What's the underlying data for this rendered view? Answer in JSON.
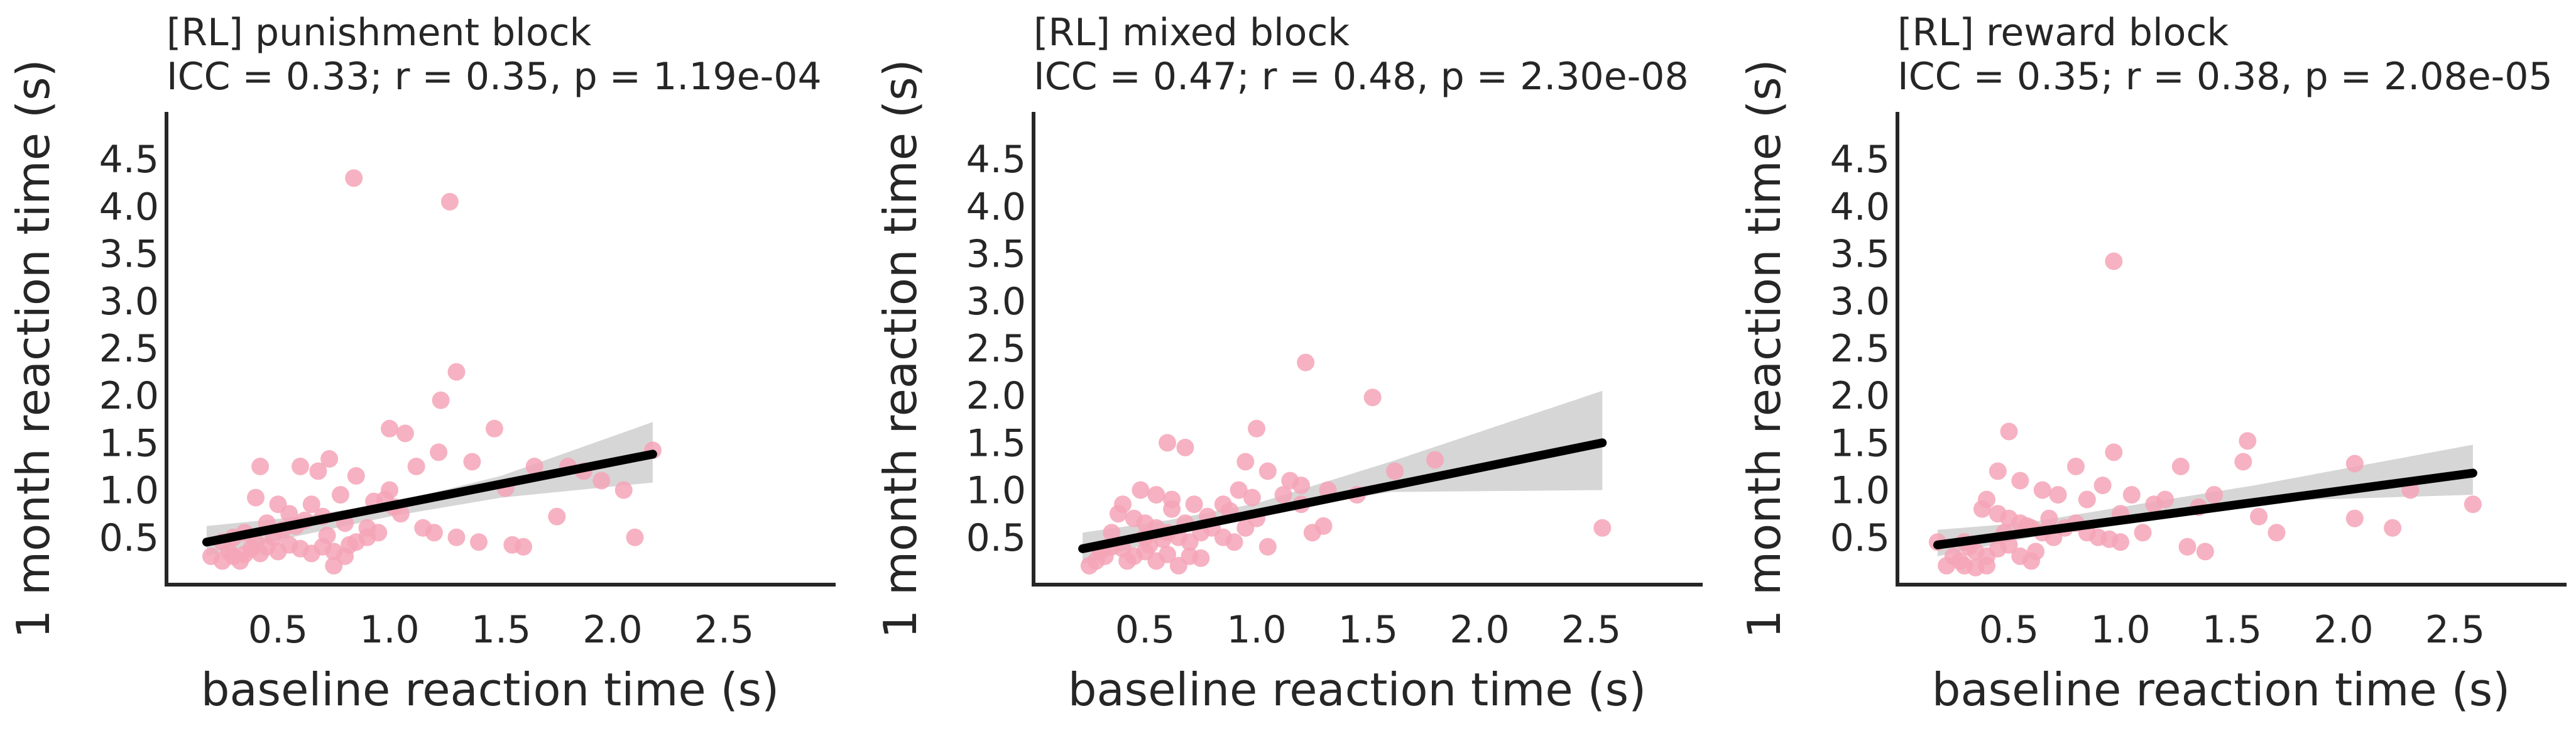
{
  "colors": {
    "point": "#f4a5b7",
    "fit_line": "#000000",
    "band": "#c8c8c8",
    "axis": "#262626"
  },
  "chart_data": [
    {
      "type": "scatter",
      "title": "[RL] punishment block",
      "subtitle": "ICC = 0.33; r = 0.35, p = 1.19e-04",
      "xlabel": "baseline reaction time (s)",
      "ylabel": "1 month reaction time (s)",
      "xlim": [
        0.0,
        3.0
      ],
      "ylim": [
        0.0,
        5.0
      ],
      "xticks": [
        "0.5",
        "1.0",
        "1.5",
        "2.0",
        "2.5"
      ],
      "yticks": [
        "0.5",
        "1.0",
        "1.5",
        "2.0",
        "2.5",
        "3.0",
        "3.5",
        "4.0",
        "4.5"
      ],
      "fit_line": {
        "x": [
          0.18,
          2.18
        ],
        "y": [
          0.45,
          1.38
        ]
      },
      "band": {
        "x": [
          0.18,
          0.6,
          1.0,
          1.5,
          2.18
        ],
        "lower": [
          0.3,
          0.52,
          0.72,
          0.92,
          1.08
        ],
        "upper": [
          0.62,
          0.72,
          0.86,
          1.15,
          1.72
        ]
      },
      "points": [
        [
          0.84,
          4.3
        ],
        [
          1.27,
          4.05
        ],
        [
          1.3,
          2.25
        ],
        [
          1.23,
          1.95
        ],
        [
          1.0,
          1.65
        ],
        [
          1.07,
          1.6
        ],
        [
          1.47,
          1.65
        ],
        [
          1.22,
          1.4
        ],
        [
          1.37,
          1.3
        ],
        [
          0.73,
          1.33
        ],
        [
          0.6,
          1.25
        ],
        [
          0.68,
          1.2
        ],
        [
          0.85,
          1.15
        ],
        [
          1.12,
          1.25
        ],
        [
          0.42,
          1.25
        ],
        [
          1.65,
          1.25
        ],
        [
          1.8,
          1.25
        ],
        [
          1.87,
          1.2
        ],
        [
          1.95,
          1.1
        ],
        [
          2.18,
          1.42
        ],
        [
          2.05,
          1.0
        ],
        [
          1.52,
          1.02
        ],
        [
          1.0,
          1.0
        ],
        [
          0.78,
          0.95
        ],
        [
          0.4,
          0.92
        ],
        [
          0.5,
          0.85
        ],
        [
          0.65,
          0.85
        ],
        [
          0.93,
          0.88
        ],
        [
          0.55,
          0.75
        ],
        [
          0.7,
          0.72
        ],
        [
          0.8,
          0.65
        ],
        [
          0.9,
          0.6
        ],
        [
          1.02,
          0.82
        ],
        [
          1.15,
          0.6
        ],
        [
          1.3,
          0.5
        ],
        [
          1.4,
          0.45
        ],
        [
          1.55,
          0.42
        ],
        [
          1.6,
          0.4
        ],
        [
          1.2,
          0.55
        ],
        [
          0.35,
          0.55
        ],
        [
          0.3,
          0.5
        ],
        [
          0.25,
          0.45
        ],
        [
          0.4,
          0.45
        ],
        [
          0.45,
          0.4
        ],
        [
          0.5,
          0.35
        ],
        [
          0.55,
          0.42
        ],
        [
          0.6,
          0.38
        ],
        [
          0.65,
          0.33
        ],
        [
          0.7,
          0.4
        ],
        [
          0.75,
          0.35
        ],
        [
          0.8,
          0.3
        ],
        [
          0.85,
          0.45
        ],
        [
          0.9,
          0.5
        ],
        [
          0.95,
          0.55
        ],
        [
          0.35,
          0.32
        ],
        [
          0.3,
          0.3
        ],
        [
          0.2,
          0.3
        ],
        [
          0.25,
          0.25
        ],
        [
          0.28,
          0.35
        ],
        [
          0.38,
          0.38
        ],
        [
          0.42,
          0.33
        ],
        [
          0.48,
          0.5
        ],
        [
          0.52,
          0.58
        ],
        [
          0.58,
          0.62
        ],
        [
          0.62,
          0.68
        ],
        [
          0.72,
          0.52
        ],
        [
          0.82,
          0.42
        ],
        [
          0.75,
          0.2
        ],
        [
          1.75,
          0.72
        ],
        [
          2.1,
          0.5
        ],
        [
          1.05,
          0.75
        ],
        [
          0.98,
          0.9
        ],
        [
          0.45,
          0.65
        ],
        [
          0.33,
          0.25
        ]
      ]
    },
    {
      "type": "scatter",
      "title": "[RL] mixed block",
      "subtitle": "ICC = 0.47; r = 0.48, p = 2.30e-08",
      "xlabel": "baseline reaction time (s)",
      "ylabel": "1 month reaction time (s)",
      "xlim": [
        0.0,
        3.0
      ],
      "ylim": [
        0.0,
        5.0
      ],
      "xticks": [
        "0.5",
        "1.0",
        "1.5",
        "2.0",
        "2.5"
      ],
      "yticks": [
        "0.5",
        "1.0",
        "1.5",
        "2.0",
        "2.5",
        "3.0",
        "3.5",
        "4.0",
        "4.5"
      ],
      "fit_line": {
        "x": [
          0.22,
          2.55
        ],
        "y": [
          0.38,
          1.5
        ]
      },
      "band": {
        "x": [
          0.22,
          0.6,
          1.0,
          1.6,
          2.55
        ],
        "lower": [
          0.22,
          0.5,
          0.75,
          0.98,
          1.0
        ],
        "upper": [
          0.55,
          0.68,
          0.86,
          1.3,
          2.05
        ]
      },
      "points": [
        [
          1.22,
          2.35
        ],
        [
          1.52,
          1.98
        ],
        [
          0.6,
          1.5
        ],
        [
          0.68,
          1.45
        ],
        [
          1.0,
          1.65
        ],
        [
          0.95,
          1.3
        ],
        [
          1.05,
          1.2
        ],
        [
          1.62,
          1.2
        ],
        [
          1.8,
          1.32
        ],
        [
          0.48,
          1.0
        ],
        [
          0.55,
          0.95
        ],
        [
          0.62,
          0.9
        ],
        [
          0.72,
          0.85
        ],
        [
          0.85,
          0.85
        ],
        [
          0.92,
          1.0
        ],
        [
          1.15,
          1.1
        ],
        [
          1.2,
          1.05
        ],
        [
          1.32,
          1.0
        ],
        [
          1.12,
          0.95
        ],
        [
          0.4,
          0.85
        ],
        [
          0.38,
          0.75
        ],
        [
          0.45,
          0.7
        ],
        [
          0.5,
          0.65
        ],
        [
          0.55,
          0.6
        ],
        [
          0.6,
          0.55
        ],
        [
          0.65,
          0.5
        ],
        [
          0.7,
          0.45
        ],
        [
          0.75,
          0.55
        ],
        [
          0.8,
          0.6
        ],
        [
          0.85,
          0.5
        ],
        [
          0.9,
          0.45
        ],
        [
          0.95,
          0.6
        ],
        [
          1.0,
          0.7
        ],
        [
          1.25,
          0.55
        ],
        [
          1.3,
          0.62
        ],
        [
          1.05,
          0.4
        ],
        [
          0.3,
          0.35
        ],
        [
          0.32,
          0.3
        ],
        [
          0.35,
          0.4
        ],
        [
          0.4,
          0.38
        ],
        [
          0.45,
          0.3
        ],
        [
          0.5,
          0.35
        ],
        [
          0.55,
          0.25
        ],
        [
          0.6,
          0.32
        ],
        [
          0.65,
          0.2
        ],
        [
          0.7,
          0.3
        ],
        [
          0.75,
          0.28
        ],
        [
          0.28,
          0.25
        ],
        [
          0.25,
          0.2
        ],
        [
          0.42,
          0.25
        ],
        [
          0.52,
          0.42
        ],
        [
          0.58,
          0.48
        ],
        [
          0.68,
          0.65
        ],
        [
          0.78,
          0.72
        ],
        [
          0.88,
          0.78
        ],
        [
          2.55,
          0.6
        ],
        [
          1.2,
          0.85
        ],
        [
          1.45,
          0.95
        ],
        [
          0.62,
          0.8
        ],
        [
          0.5,
          0.5
        ],
        [
          0.35,
          0.55
        ],
        [
          0.98,
          0.92
        ]
      ]
    },
    {
      "type": "scatter",
      "title": "[RL] reward block",
      "subtitle": "ICC = 0.35; r = 0.38, p = 2.08e-05",
      "xlabel": "baseline reaction time (s)",
      "ylabel": "1 month reaction time (s)",
      "xlim": [
        0.0,
        3.0
      ],
      "ylim": [
        0.0,
        5.0
      ],
      "xticks": [
        "0.5",
        "1.0",
        "1.5",
        "2.0",
        "2.5"
      ],
      "yticks": [
        "0.5",
        "1.0",
        "1.5",
        "2.0",
        "2.5",
        "3.0",
        "3.5",
        "4.0",
        "4.5"
      ],
      "fit_line": {
        "x": [
          0.18,
          2.58
        ],
        "y": [
          0.42,
          1.18
        ]
      },
      "band": {
        "x": [
          0.18,
          0.6,
          1.0,
          1.6,
          2.58
        ],
        "lower": [
          0.3,
          0.5,
          0.7,
          0.88,
          0.95
        ],
        "upper": [
          0.58,
          0.66,
          0.82,
          1.05,
          1.48
        ]
      },
      "points": [
        [
          0.97,
          3.42
        ],
        [
          0.5,
          1.62
        ],
        [
          0.97,
          1.4
        ],
        [
          0.8,
          1.25
        ],
        [
          1.27,
          1.25
        ],
        [
          1.57,
          1.52
        ],
        [
          1.55,
          1.3
        ],
        [
          2.05,
          1.28
        ],
        [
          2.3,
          1.0
        ],
        [
          0.45,
          1.2
        ],
        [
          0.55,
          1.1
        ],
        [
          0.65,
          1.0
        ],
        [
          0.72,
          0.95
        ],
        [
          0.85,
          0.9
        ],
        [
          0.92,
          1.05
        ],
        [
          1.05,
          0.95
        ],
        [
          1.15,
          0.85
        ],
        [
          1.2,
          0.9
        ],
        [
          1.35,
          0.82
        ],
        [
          1.42,
          0.95
        ],
        [
          0.4,
          0.9
        ],
        [
          0.38,
          0.8
        ],
        [
          0.45,
          0.75
        ],
        [
          0.5,
          0.7
        ],
        [
          0.55,
          0.65
        ],
        [
          0.6,
          0.6
        ],
        [
          0.65,
          0.55
        ],
        [
          0.7,
          0.5
        ],
        [
          0.75,
          0.6
        ],
        [
          0.8,
          0.65
        ],
        [
          0.85,
          0.55
        ],
        [
          0.9,
          0.5
        ],
        [
          0.95,
          0.48
        ],
        [
          1.0,
          0.45
        ],
        [
          1.1,
          0.55
        ],
        [
          1.3,
          0.4
        ],
        [
          1.38,
          0.35
        ],
        [
          0.3,
          0.45
        ],
        [
          0.32,
          0.4
        ],
        [
          0.35,
          0.35
        ],
        [
          0.4,
          0.3
        ],
        [
          0.45,
          0.38
        ],
        [
          0.5,
          0.42
        ],
        [
          0.55,
          0.3
        ],
        [
          0.6,
          0.25
        ],
        [
          0.25,
          0.3
        ],
        [
          0.28,
          0.25
        ],
        [
          0.22,
          0.2
        ],
        [
          0.3,
          0.2
        ],
        [
          0.35,
          0.18
        ],
        [
          0.4,
          0.2
        ],
        [
          0.48,
          0.55
        ],
        [
          0.58,
          0.62
        ],
        [
          0.68,
          0.7
        ],
        [
          2.58,
          0.85
        ],
        [
          2.22,
          0.6
        ],
        [
          2.05,
          0.7
        ],
        [
          1.7,
          0.55
        ],
        [
          1.62,
          0.72
        ],
        [
          0.18,
          0.45
        ],
        [
          0.62,
          0.35
        ],
        [
          1.0,
          0.75
        ]
      ]
    }
  ]
}
